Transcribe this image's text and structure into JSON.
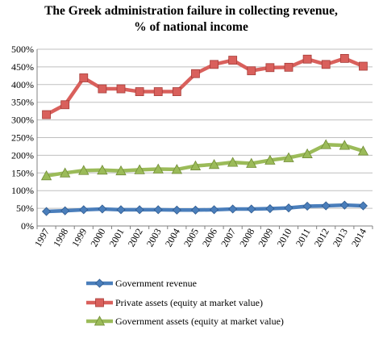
{
  "chart_data": {
    "type": "line",
    "title_line1": "The Greek administration failure in collecting revenue,",
    "title_line2": "% of national income",
    "x": [
      "1997",
      "1998",
      "1999",
      "2000",
      "2001",
      "2002",
      "2003",
      "2004",
      "2005",
      "2006",
      "2007",
      "2008",
      "2009",
      "2010",
      "2011",
      "2012",
      "2013",
      "2014"
    ],
    "ylim": [
      0,
      500
    ],
    "y_ticks": [
      "0%",
      "50%",
      "100%",
      "150%",
      "200%",
      "250%",
      "300%",
      "350%",
      "400%",
      "450%",
      "500%"
    ],
    "grid": "horizontal",
    "legend_position": "bottom",
    "series": [
      {
        "name": "Government revenue",
        "color": "#4a7ebb",
        "marker": "diamond",
        "values": [
          41,
          43,
          46,
          48,
          46,
          46,
          46,
          45,
          45,
          46,
          48,
          48,
          49,
          51,
          56,
          57,
          59,
          57
        ]
      },
      {
        "name": "Private assets (equity at market value)",
        "color": "#d9605c",
        "marker": "square",
        "values": [
          315,
          343,
          419,
          388,
          388,
          380,
          380,
          380,
          431,
          457,
          469,
          439,
          448,
          449,
          472,
          457,
          474,
          452
        ]
      },
      {
        "name": "Government assets (equity at market value)",
        "color": "#9bbb59",
        "marker": "triangle",
        "values": [
          142,
          150,
          157,
          158,
          156,
          159,
          161,
          160,
          170,
          174,
          180,
          177,
          186,
          193,
          204,
          230,
          228,
          212
        ]
      }
    ]
  }
}
